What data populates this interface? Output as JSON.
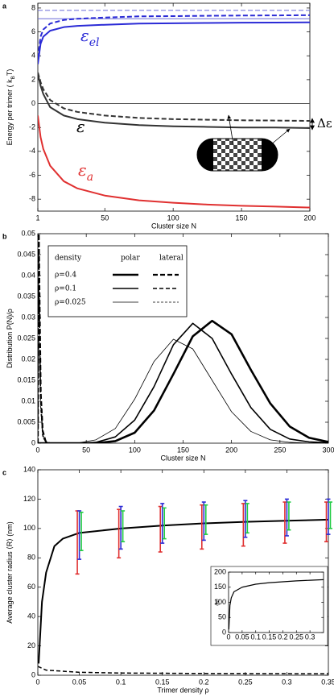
{
  "chart_data": [
    {
      "type": "line",
      "panel": "a",
      "xlabel": "Cluster size  N",
      "ylabel": [
        {
          "text": "Energy per trimer ( k"
        },
        {
          "text": "B",
          "sub": true
        },
        {
          "text": "T)"
        }
      ],
      "xlim": [
        1,
        200
      ],
      "ylim": [
        -9,
        8.4
      ],
      "xticks": [
        1,
        50,
        100,
        150,
        200
      ],
      "yticks": [
        -8,
        -6,
        -4,
        -2,
        0,
        2,
        4,
        6,
        8
      ],
      "x": [
        1,
        3,
        5,
        10,
        20,
        30,
        50,
        75,
        100,
        125,
        150,
        175,
        200
      ],
      "series": [
        {
          "color": "#2b2bd6",
          "width": 2,
          "values": [
            3.3,
            5.0,
            5.6,
            6.1,
            6.4,
            6.5,
            6.6,
            6.7,
            6.72,
            6.75,
            6.77,
            6.78,
            6.8
          ]
        },
        {
          "color": "#2b2bd6",
          "width": 2,
          "dash": "6,3",
          "values": [
            3.8,
            5.6,
            6.2,
            6.7,
            7.0,
            7.1,
            7.2,
            7.3,
            7.32,
            7.35,
            7.37,
            7.38,
            7.4
          ]
        },
        {
          "color": "#333333",
          "width": 2,
          "values": [
            2.5,
            1.5,
            0.8,
            -0.3,
            -1.0,
            -1.3,
            -1.6,
            -1.8,
            -1.9,
            -1.95,
            -2.0,
            -2.0,
            -2.05
          ]
        },
        {
          "color": "#333333",
          "width": 2,
          "dash": "6,3",
          "values": [
            2.6,
            1.8,
            1.2,
            0.3,
            -0.4,
            -0.7,
            -1.0,
            -1.2,
            -1.3,
            -1.35,
            -1.4,
            -1.42,
            -1.45
          ]
        },
        {
          "color": "#e03030",
          "width": 2,
          "values": [
            -1.0,
            -2.8,
            -3.8,
            -5.2,
            -6.5,
            -7.1,
            -7.7,
            -8.1,
            -8.3,
            -8.45,
            -8.55,
            -8.62,
            -8.7
          ]
        }
      ],
      "hlines": [
        {
          "value": 7.8,
          "color": "#6a6ad8",
          "dash": "6,3"
        },
        {
          "value": 7.1,
          "color": "#6a6ad8"
        },
        {
          "value": 0,
          "color": "#555555"
        }
      ],
      "annotations": [
        {
          "parts": [
            {
              "text": "ε"
            },
            {
              "text": "el",
              "sub": true
            }
          ],
          "color": "#2b2bd6"
        },
        {
          "parts": [
            {
              "text": "ε"
            }
          ],
          "color": "#000000"
        },
        {
          "parts": [
            {
              "text": "ε"
            },
            {
              "text": "a",
              "sub": true
            }
          ],
          "color": "#e03030"
        },
        {
          "parts": [
            {
              "text": "Δε"
            }
          ],
          "color": "#000000"
        }
      ]
    },
    {
      "type": "line",
      "panel": "b",
      "xlabel": "Cluster size  N",
      "ylabel": [
        {
          "text": "Distribution  P(N)/ρ"
        }
      ],
      "xlim": [
        0,
        300
      ],
      "ylim": [
        0,
        0.05
      ],
      "xticks": [
        0,
        50,
        100,
        150,
        200,
        250,
        300
      ],
      "yticks": [
        0,
        0.005,
        0.01,
        0.015,
        0.02,
        0.025,
        0.03,
        0.035,
        0.04,
        0.045,
        0.05
      ],
      "x": [
        0,
        20,
        40,
        60,
        80,
        100,
        120,
        140,
        160,
        180,
        200,
        220,
        240,
        260,
        280,
        300
      ],
      "legend": {
        "headers": [
          "density",
          "polar",
          "lateral"
        ],
        "rows": [
          "ρ=0.4",
          "ρ=0.1",
          "ρ=0.025"
        ]
      },
      "series": [
        {
          "legend_row": 0,
          "style": "polar",
          "color": "#000000",
          "width": 2.6,
          "values": [
            0,
            0,
            0,
            0,
            0.0005,
            0.0025,
            0.0078,
            0.0165,
            0.0255,
            0.0292,
            0.026,
            0.0175,
            0.0095,
            0.004,
            0.0013,
            0.0003
          ]
        },
        {
          "legend_row": 1,
          "style": "polar",
          "color": "#000000",
          "width": 1.6,
          "values": [
            0,
            0,
            0,
            0.0002,
            0.0015,
            0.0055,
            0.0135,
            0.0235,
            0.0286,
            0.025,
            0.0165,
            0.0085,
            0.0033,
            0.001,
            0.0003,
            0.0001
          ]
        },
        {
          "legend_row": 2,
          "style": "polar",
          "color": "#000000",
          "width": 0.8,
          "values": [
            0,
            0,
            0,
            0.0008,
            0.0035,
            0.0105,
            0.0195,
            0.0248,
            0.0225,
            0.015,
            0.0075,
            0.0028,
            0.0008,
            0.0002,
            0,
            0
          ]
        },
        {
          "legend_row": 0,
          "style": "lateral",
          "color": "#000000",
          "width": 2.2,
          "dash": "6,3",
          "x": [
            0,
            1,
            2,
            3,
            5,
            8,
            12
          ],
          "values": [
            0,
            0.05,
            0.03,
            0.012,
            0.003,
            0.0005,
            0
          ]
        },
        {
          "legend_row": 1,
          "style": "lateral",
          "color": "#000000",
          "width": 1.4,
          "dash": "5,3",
          "x": [
            0,
            1,
            2,
            3,
            5,
            8,
            12
          ],
          "values": [
            0,
            0.045,
            0.025,
            0.01,
            0.002,
            0.0004,
            0
          ]
        },
        {
          "legend_row": 2,
          "style": "lateral",
          "color": "#000000",
          "width": 0.8,
          "dash": "3,2",
          "x": [
            0,
            1,
            2,
            3,
            5,
            8,
            12
          ],
          "values": [
            0,
            0.04,
            0.02,
            0.008,
            0.0015,
            0.0003,
            0
          ]
        }
      ]
    },
    {
      "type": "line",
      "panel": "c",
      "xlabel": "Trimer density ρ",
      "ylabel": [
        {
          "text": "Average cluster radius ⟨R⟩ (nm)"
        }
      ],
      "xlim": [
        0,
        0.35
      ],
      "ylim": [
        0,
        140
      ],
      "xticks": [
        0,
        0.05,
        0.1,
        0.15,
        0.2,
        0.25,
        0.3,
        0.35
      ],
      "yticks": [
        0,
        20,
        40,
        60,
        80,
        100,
        120,
        140
      ],
      "x": [
        0.001,
        0.005,
        0.01,
        0.02,
        0.03,
        0.05,
        0.1,
        0.15,
        0.2,
        0.25,
        0.3,
        0.35
      ],
      "series": [
        {
          "color": "#000000",
          "width": 2,
          "values": [
            8,
            50,
            70,
            88,
            93,
            97,
            100,
            102,
            103.5,
            104.5,
            105.3,
            106
          ]
        },
        {
          "color": "#000000",
          "width": 1.5,
          "dash": "5,3",
          "x": [
            0,
            0.01,
            0.05,
            0.1,
            0.2,
            0.35
          ],
          "values": [
            6,
            3.5,
            2,
            1.5,
            1.2,
            1
          ]
        }
      ],
      "error_x": [
        0.05,
        0.1,
        0.15,
        0.2,
        0.25,
        0.3,
        0.35
      ],
      "error_series": [
        {
          "color": "#e03030",
          "values": [
            90.5,
            96.5,
            99.5,
            101,
            102.5,
            104,
            104.5
          ],
          "errors": [
            21.5,
            16.5,
            15.5,
            15,
            14.5,
            14,
            13.5
          ]
        },
        {
          "color": "#2b2bd6",
          "values": [
            95.5,
            100.5,
            103.5,
            105,
            106.5,
            107.5,
            108
          ],
          "errors": [
            16.5,
            14.5,
            13.5,
            13,
            12.5,
            12.5,
            12
          ]
        },
        {
          "color": "#22cc44",
          "values": [
            98,
            101.5,
            103.5,
            106,
            107,
            108.5,
            109
          ],
          "errors": [
            13,
            10.5,
            10.5,
            10,
            10,
            9.5,
            9
          ]
        }
      ],
      "inset": {
        "type": "line",
        "ylabel": [
          {
            "text": "⟨N⟩"
          }
        ],
        "xlim": [
          0,
          0.35
        ],
        "ylim": [
          0,
          200
        ],
        "xticks": [
          0,
          0.05,
          0.1,
          0.15,
          0.2,
          0.25,
          0.3
        ],
        "yticks": [
          0,
          50,
          100,
          150,
          200
        ],
        "x": [
          0.001,
          0.005,
          0.01,
          0.02,
          0.05,
          0.1,
          0.15,
          0.2,
          0.25,
          0.3,
          0.35
        ],
        "series": [
          {
            "color": "#000000",
            "width": 1.2,
            "values": [
              10,
              90,
              115,
              135,
              150,
              160,
              165,
              168,
              171,
              173,
              175
            ]
          }
        ]
      }
    }
  ]
}
